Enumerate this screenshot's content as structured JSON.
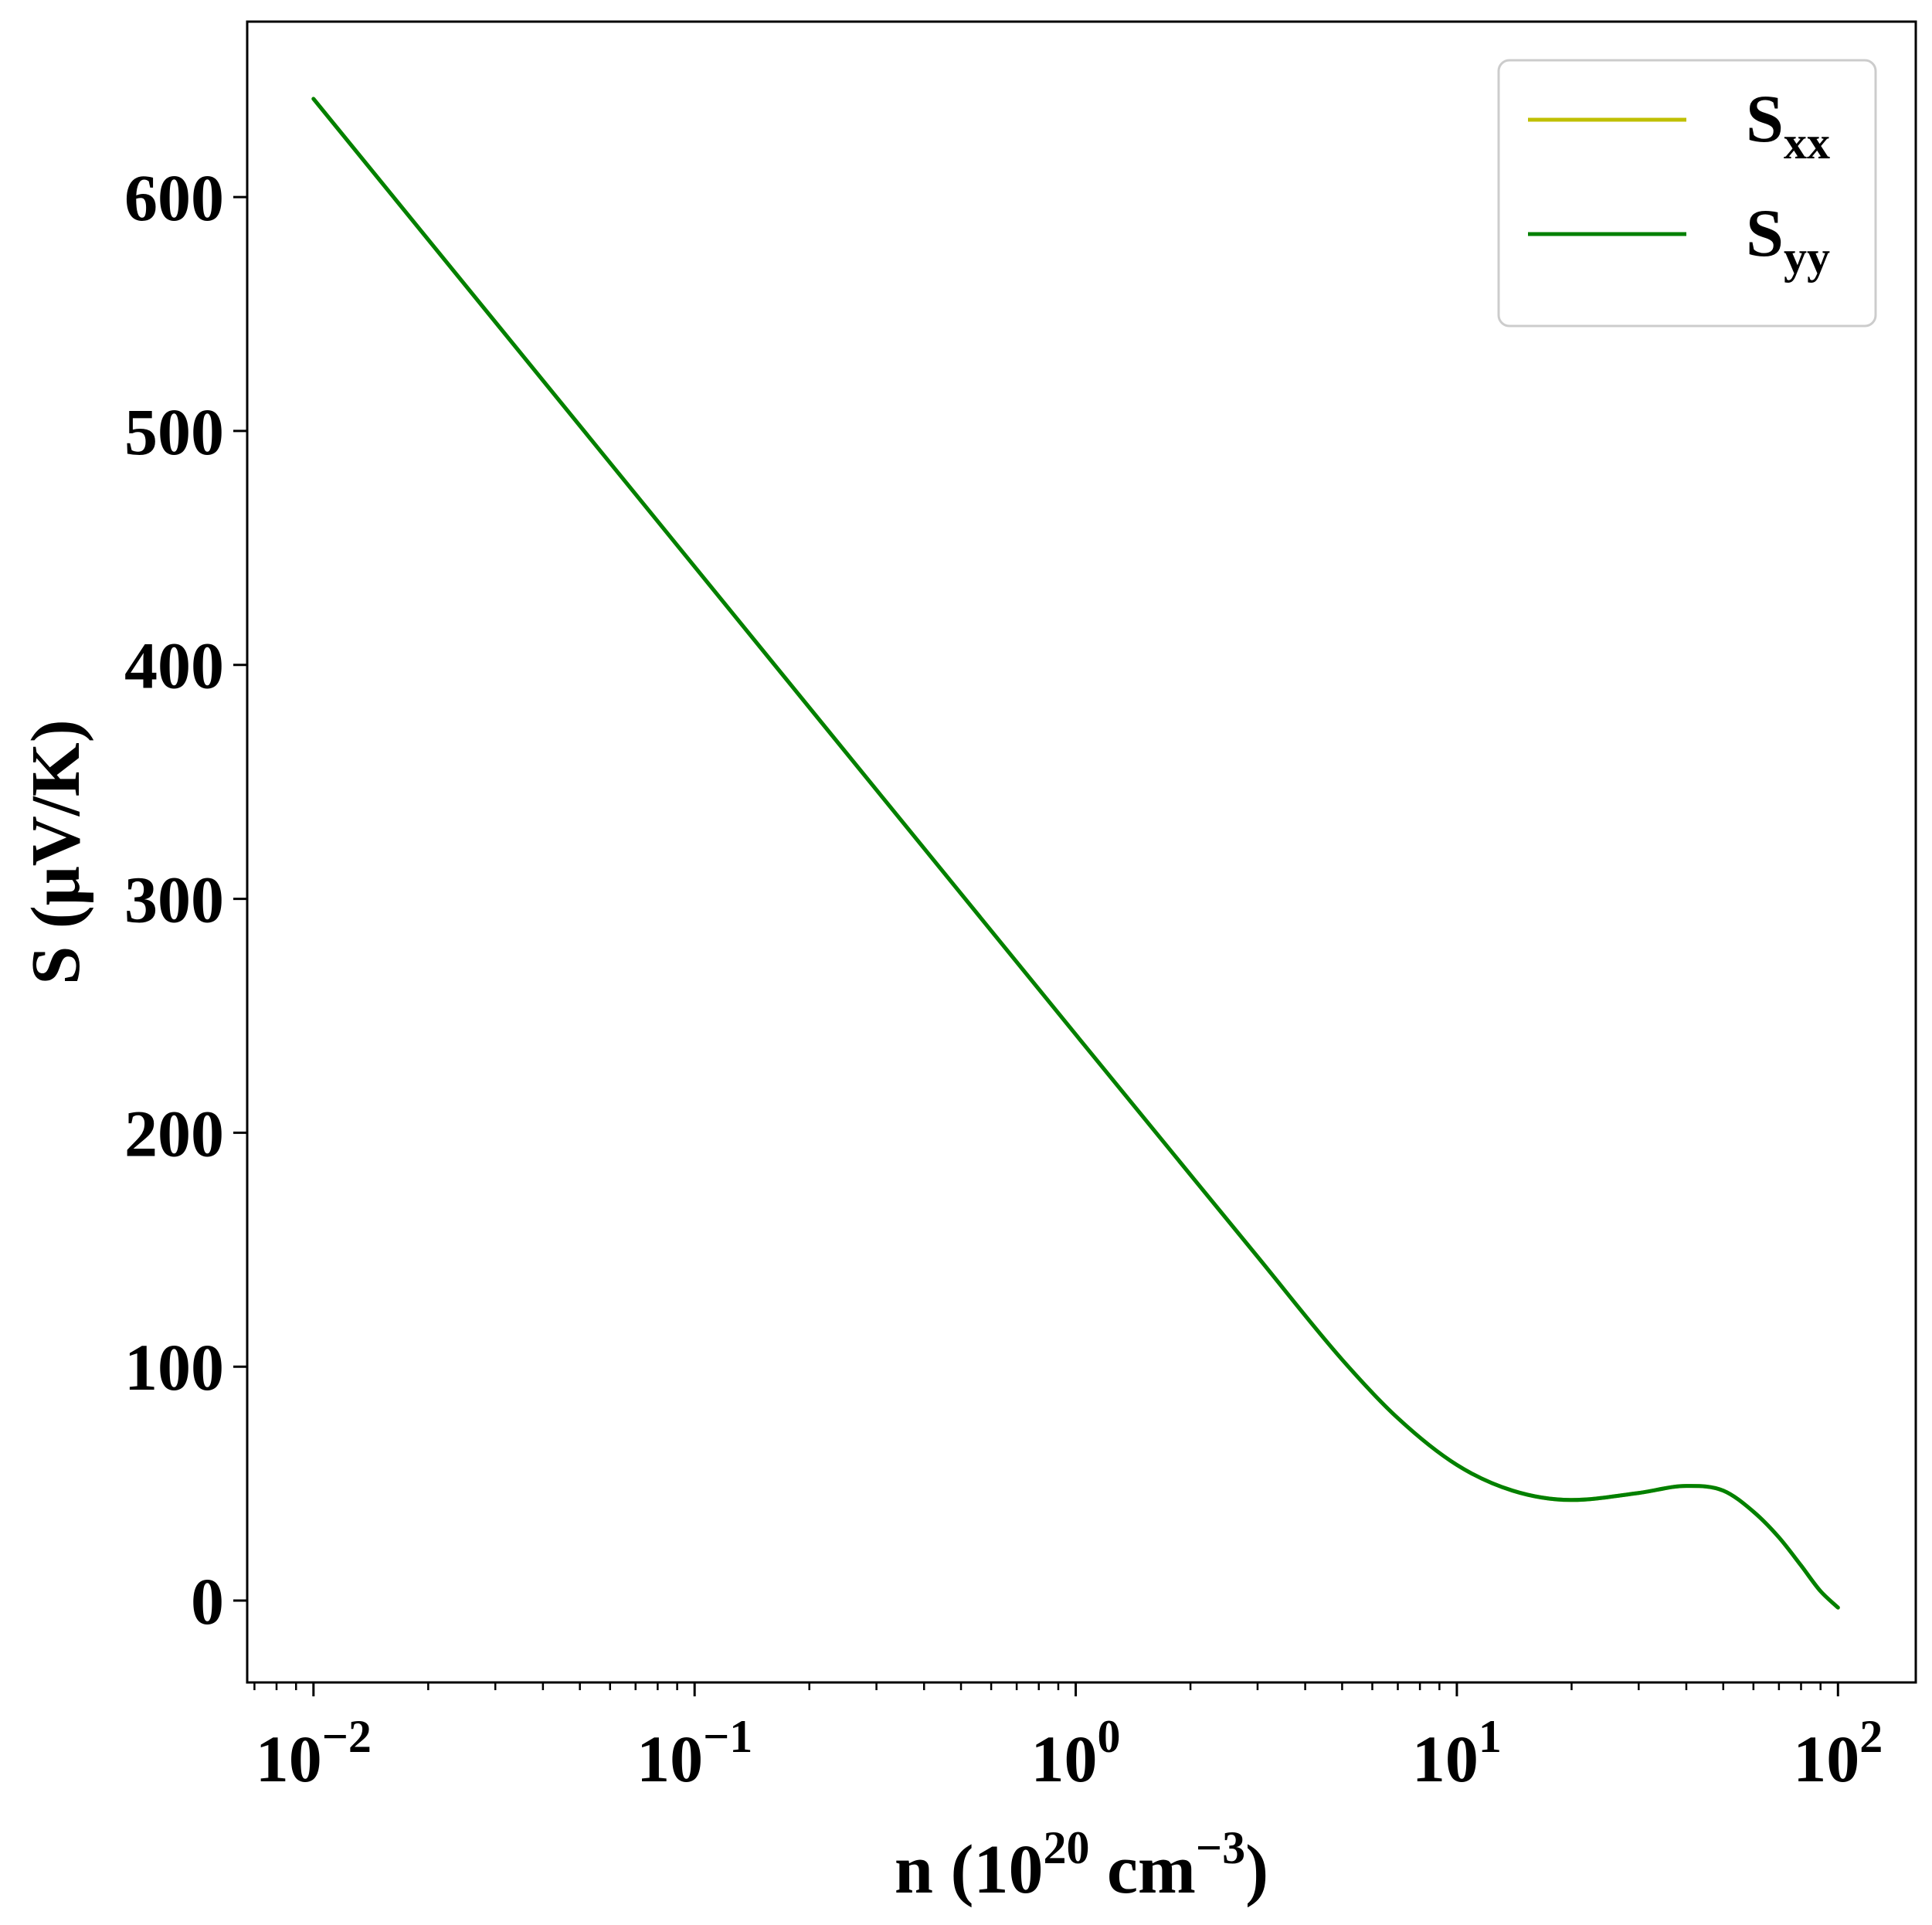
{
  "chart_data": {
    "type": "line",
    "xlabel": {
      "prefix": "n (10",
      "sup1": "20",
      "middle": " cm",
      "sup2": "−3",
      "suffix": ")"
    },
    "ylabel": "S (μV/K)",
    "xscale": "log",
    "xlim": [
      0.0067,
      160
    ],
    "ylim": [
      -35,
      675
    ],
    "x_ticks": [
      {
        "value": 0.01,
        "base": "10",
        "exp": "−2"
      },
      {
        "value": 0.1,
        "base": "10",
        "exp": "−1"
      },
      {
        "value": 1,
        "base": "10",
        "exp": "0"
      },
      {
        "value": 10,
        "base": "10",
        "exp": "1"
      },
      {
        "value": 100,
        "base": "10",
        "exp": "2"
      }
    ],
    "y_ticks": [
      0,
      100,
      200,
      300,
      400,
      500,
      600
    ],
    "grid": false,
    "legend": {
      "placement": "top-right",
      "entries": [
        {
          "base": "S",
          "sub": "xx",
          "color": "#bfbf00"
        },
        {
          "base": "S",
          "sub": "yy",
          "color": "#008000"
        }
      ]
    },
    "series": [
      {
        "color": "#bfbf00",
        "x": [
          0.01,
          0.1,
          1,
          2,
          3,
          5,
          7,
          10,
          14,
          20,
          30,
          40,
          50,
          60,
          70,
          80,
          90,
          100
        ],
        "y": [
          642,
          442,
          242,
          182,
          147,
          103,
          78,
          58,
          47,
          43,
          46,
          49,
          47,
          38,
          27,
          15,
          4,
          -3
        ]
      },
      {
        "color": "#008000",
        "x": [
          0.01,
          0.1,
          1,
          2,
          3,
          5,
          7,
          10,
          14,
          20,
          30,
          40,
          50,
          60,
          70,
          80,
          90,
          100
        ],
        "y": [
          642,
          442,
          242,
          182,
          147,
          103,
          78,
          58,
          47,
          43,
          46,
          49,
          47,
          38,
          27,
          15,
          4,
          -3
        ]
      }
    ]
  }
}
